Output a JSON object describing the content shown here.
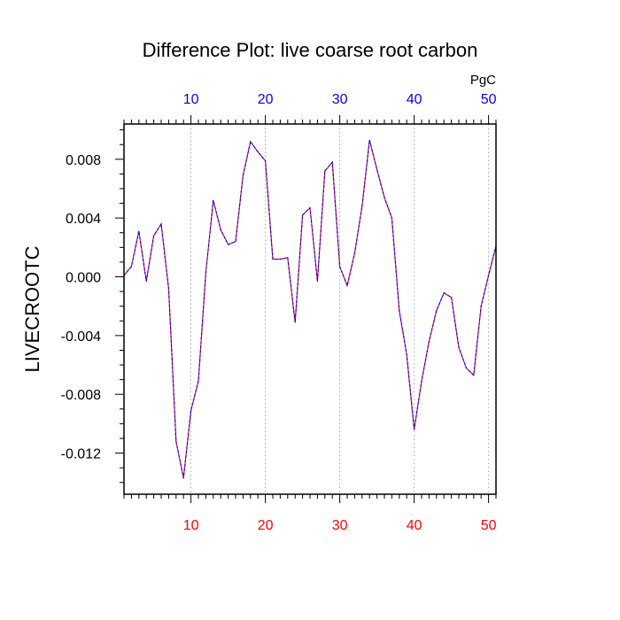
{
  "chart_data": {
    "type": "line",
    "title": "Difference Plot: live coarse root carbon",
    "ylabel": "LIVECROOTC",
    "units_label": "PgC",
    "xlim": [
      1,
      51
    ],
    "ylim": [
      -0.0148,
      0.0104
    ],
    "x_ticks": [
      10,
      20,
      30,
      40,
      50
    ],
    "x_tick_labels": [
      "10",
      "20",
      "30",
      "40",
      "50"
    ],
    "y_ticks": [
      -0.012,
      -0.008,
      -0.004,
      0.0,
      0.004,
      0.008
    ],
    "y_tick_labels": [
      "-0.012",
      "-0.008",
      "-0.004",
      "0.000",
      "0.004",
      "0.008"
    ],
    "grid": "vertical-dotted",
    "colors": {
      "bottom_tick_labels": "#ff0000",
      "top_tick_labels": "#0000ff",
      "series_a": "#ff0000",
      "series_b": "#0000ff"
    },
    "x": [
      1,
      2,
      3,
      4,
      5,
      6,
      7,
      8,
      9,
      10,
      11,
      12,
      13,
      14,
      15,
      16,
      17,
      18,
      19,
      20,
      21,
      22,
      23,
      24,
      25,
      26,
      27,
      28,
      29,
      30,
      31,
      32,
      33,
      34,
      35,
      36,
      37,
      38,
      39,
      40,
      41,
      42,
      43,
      44,
      45,
      46,
      47,
      48,
      49,
      50,
      51
    ],
    "series": [
      {
        "values": [
          0.0001,
          0.0007,
          0.0031,
          -0.0003,
          0.0028,
          0.0036,
          -0.0008,
          -0.0112,
          -0.0137,
          -0.0091,
          -0.0071,
          0.0003,
          0.0052,
          0.0032,
          0.0022,
          0.0024,
          0.0069,
          0.0092,
          0.0085,
          0.0079,
          0.0012,
          0.0012,
          0.0013,
          -0.0031,
          0.0042,
          0.0047,
          -0.0003,
          0.0072,
          0.0078,
          0.0007,
          -0.0006,
          0.0016,
          0.0048,
          0.0093,
          0.0073,
          0.0054,
          0.004,
          -0.0023,
          -0.0053,
          -0.0104,
          -0.0071,
          -0.0044,
          -0.0023,
          -0.0011,
          -0.0014,
          -0.0048,
          -0.0062,
          -0.0067,
          -0.002,
          0.0001,
          0.0021
        ]
      }
    ]
  }
}
